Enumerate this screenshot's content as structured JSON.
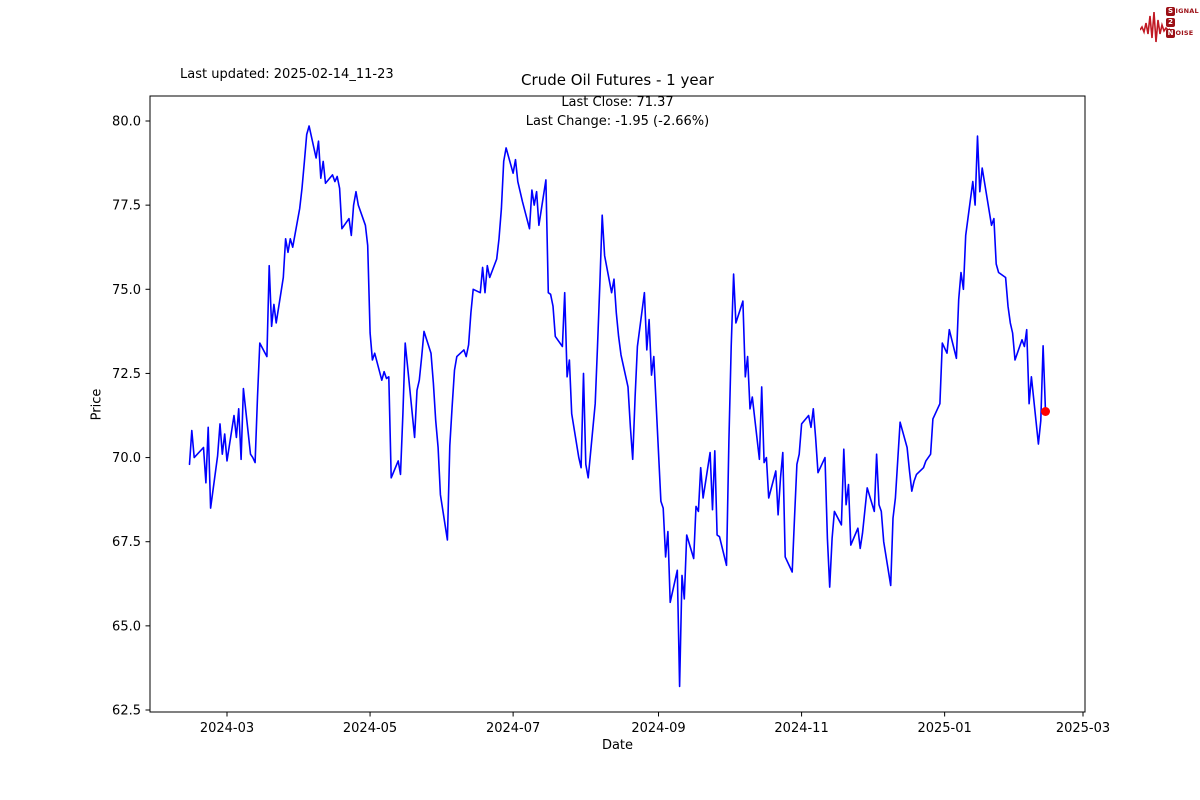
{
  "page": {
    "background": "#ffffff"
  },
  "header": {
    "last_updated": "Last updated: 2025-02-14_11-23"
  },
  "logo": {
    "signal_initial": "S",
    "signal_rest": "IGNAL",
    "middle_digit": "2",
    "noise_initial": "N",
    "noise_rest": "OISE",
    "wave_color": "#c01822",
    "box_color": "#9c1016",
    "text_color": "#9c1016"
  },
  "chart_data": {
    "type": "line",
    "title": "Crude Oil Futures - 1 year",
    "annotation_line1": "Last Close: 71.37",
    "annotation_line2": "Last Change: -1.95 (-2.66%)",
    "xlabel": "Date",
    "ylabel": "Price",
    "last_close": 71.37,
    "last_change": -1.95,
    "last_change_pct": -2.66,
    "line_color": "#0000ff",
    "marker_color": "#ff0000",
    "axis_color": "#000000",
    "grid": false,
    "legend_position": "none",
    "ylim": [
      62.4,
      80.75
    ],
    "y_ticks": [
      {
        "value": 80.0,
        "label": "80.0"
      },
      {
        "value": 77.5,
        "label": "77.5"
      },
      {
        "value": 75.0,
        "label": "75.0"
      },
      {
        "value": 72.5,
        "label": "72.5"
      },
      {
        "value": 70.0,
        "label": "70.0"
      },
      {
        "value": 67.5,
        "label": "67.5"
      },
      {
        "value": 65.0,
        "label": "65.0"
      },
      {
        "value": 62.5,
        "label": "62.5"
      }
    ],
    "x_ticks": [
      {
        "date": "2024-03-01",
        "label": "2024-03"
      },
      {
        "date": "2024-05-01",
        "label": "2024-05"
      },
      {
        "date": "2024-07-01",
        "label": "2024-07"
      },
      {
        "date": "2024-09-01",
        "label": "2024-09"
      },
      {
        "date": "2024-11-01",
        "label": "2024-11"
      },
      {
        "date": "2025-01-01",
        "label": "2025-01"
      },
      {
        "date": "2025-03-01",
        "label": "2025-03"
      }
    ],
    "series": [
      {
        "name": "Crude Oil Futures",
        "points": [
          [
            "2024-02-14",
            69.8
          ],
          [
            "2024-02-15",
            70.8
          ],
          [
            "2024-02-16",
            70.0
          ],
          [
            "2024-02-20",
            70.3
          ],
          [
            "2024-02-21",
            69.25
          ],
          [
            "2024-02-22",
            70.9
          ],
          [
            "2024-02-23",
            68.5
          ],
          [
            "2024-02-26",
            70.05
          ],
          [
            "2024-02-27",
            71.0
          ],
          [
            "2024-02-28",
            70.1
          ],
          [
            "2024-02-29",
            70.7
          ],
          [
            "2024-03-01",
            69.9
          ],
          [
            "2024-03-04",
            71.25
          ],
          [
            "2024-03-05",
            70.6
          ],
          [
            "2024-03-06",
            71.45
          ],
          [
            "2024-03-07",
            69.95
          ],
          [
            "2024-03-08",
            72.05
          ],
          [
            "2024-03-11",
            70.1
          ],
          [
            "2024-03-12",
            70.0
          ],
          [
            "2024-03-13",
            69.85
          ],
          [
            "2024-03-14",
            71.8
          ],
          [
            "2024-03-15",
            73.4
          ],
          [
            "2024-03-18",
            73.0
          ],
          [
            "2024-03-19",
            75.7
          ],
          [
            "2024-03-20",
            73.9
          ],
          [
            "2024-03-21",
            74.55
          ],
          [
            "2024-03-22",
            74.0
          ],
          [
            "2024-03-25",
            75.35
          ],
          [
            "2024-03-26",
            76.5
          ],
          [
            "2024-03-27",
            76.1
          ],
          [
            "2024-03-28",
            76.5
          ],
          [
            "2024-03-29",
            76.25
          ],
          [
            "2024-04-01",
            77.4
          ],
          [
            "2024-04-02",
            78.0
          ],
          [
            "2024-04-03",
            78.8
          ],
          [
            "2024-04-04",
            79.6
          ],
          [
            "2024-04-05",
            79.85
          ],
          [
            "2024-04-08",
            78.9
          ],
          [
            "2024-04-09",
            79.4
          ],
          [
            "2024-04-10",
            78.3
          ],
          [
            "2024-04-11",
            78.8
          ],
          [
            "2024-04-12",
            78.15
          ],
          [
            "2024-04-15",
            78.4
          ],
          [
            "2024-04-16",
            78.2
          ],
          [
            "2024-04-17",
            78.35
          ],
          [
            "2024-04-18",
            78.0
          ],
          [
            "2024-04-19",
            76.8
          ],
          [
            "2024-04-22",
            77.1
          ],
          [
            "2024-04-23",
            76.6
          ],
          [
            "2024-04-24",
            77.5
          ],
          [
            "2024-04-25",
            77.9
          ],
          [
            "2024-04-26",
            77.5
          ],
          [
            "2024-04-29",
            76.9
          ],
          [
            "2024-04-30",
            76.3
          ],
          [
            "2024-05-01",
            73.7
          ],
          [
            "2024-05-02",
            72.9
          ],
          [
            "2024-05-03",
            73.1
          ],
          [
            "2024-05-06",
            72.3
          ],
          [
            "2024-05-07",
            72.55
          ],
          [
            "2024-05-08",
            72.35
          ],
          [
            "2024-05-09",
            72.4
          ],
          [
            "2024-05-10",
            69.4
          ],
          [
            "2024-05-13",
            69.9
          ],
          [
            "2024-05-14",
            69.5
          ],
          [
            "2024-05-15",
            71.3
          ],
          [
            "2024-05-16",
            73.4
          ],
          [
            "2024-05-17",
            72.7
          ],
          [
            "2024-05-20",
            70.6
          ],
          [
            "2024-05-21",
            72.0
          ],
          [
            "2024-05-22",
            72.3
          ],
          [
            "2024-05-23",
            73.0
          ],
          [
            "2024-05-24",
            73.75
          ],
          [
            "2024-05-27",
            73.1
          ],
          [
            "2024-05-28",
            72.2
          ],
          [
            "2024-05-29",
            71.1
          ],
          [
            "2024-05-30",
            70.3
          ],
          [
            "2024-05-31",
            68.9
          ],
          [
            "2024-06-03",
            67.55
          ],
          [
            "2024-06-04",
            70.35
          ],
          [
            "2024-06-05",
            71.5
          ],
          [
            "2024-06-06",
            72.6
          ],
          [
            "2024-06-07",
            73.0
          ],
          [
            "2024-06-10",
            73.2
          ],
          [
            "2024-06-11",
            73.0
          ],
          [
            "2024-06-12",
            73.35
          ],
          [
            "2024-06-13",
            74.3
          ],
          [
            "2024-06-14",
            75.0
          ],
          [
            "2024-06-17",
            74.9
          ],
          [
            "2024-06-18",
            75.65
          ],
          [
            "2024-06-19",
            74.9
          ],
          [
            "2024-06-20",
            75.7
          ],
          [
            "2024-06-21",
            75.35
          ],
          [
            "2024-06-24",
            75.9
          ],
          [
            "2024-06-25",
            76.5
          ],
          [
            "2024-06-26",
            77.4
          ],
          [
            "2024-06-27",
            78.8
          ],
          [
            "2024-06-28",
            79.2
          ],
          [
            "2024-07-01",
            78.45
          ],
          [
            "2024-07-02",
            78.85
          ],
          [
            "2024-07-03",
            78.2
          ],
          [
            "2024-07-05",
            77.6
          ],
          [
            "2024-07-08",
            76.8
          ],
          [
            "2024-07-09",
            77.95
          ],
          [
            "2024-07-10",
            77.5
          ],
          [
            "2024-07-11",
            77.9
          ],
          [
            "2024-07-12",
            76.9
          ],
          [
            "2024-07-15",
            78.25
          ],
          [
            "2024-07-16",
            74.9
          ],
          [
            "2024-07-17",
            74.85
          ],
          [
            "2024-07-18",
            74.5
          ],
          [
            "2024-07-19",
            73.6
          ],
          [
            "2024-07-22",
            73.3
          ],
          [
            "2024-07-23",
            74.9
          ],
          [
            "2024-07-24",
            72.4
          ],
          [
            "2024-07-25",
            72.9
          ],
          [
            "2024-07-26",
            71.3
          ],
          [
            "2024-07-29",
            70.0
          ],
          [
            "2024-07-30",
            69.7
          ],
          [
            "2024-07-31",
            72.5
          ],
          [
            "2024-08-01",
            69.8
          ],
          [
            "2024-08-02",
            69.4
          ],
          [
            "2024-08-05",
            71.6
          ],
          [
            "2024-08-06",
            73.3
          ],
          [
            "2024-08-07",
            75.2
          ],
          [
            "2024-08-08",
            77.2
          ],
          [
            "2024-08-09",
            76.0
          ],
          [
            "2024-08-12",
            74.9
          ],
          [
            "2024-08-13",
            75.3
          ],
          [
            "2024-08-14",
            74.3
          ],
          [
            "2024-08-15",
            73.6
          ],
          [
            "2024-08-16",
            73.05
          ],
          [
            "2024-08-19",
            72.1
          ],
          [
            "2024-08-20",
            70.9
          ],
          [
            "2024-08-21",
            69.95
          ],
          [
            "2024-08-22",
            71.8
          ],
          [
            "2024-08-23",
            73.3
          ],
          [
            "2024-08-26",
            74.9
          ],
          [
            "2024-08-27",
            73.2
          ],
          [
            "2024-08-28",
            74.1
          ],
          [
            "2024-08-29",
            72.45
          ],
          [
            "2024-08-30",
            73.0
          ],
          [
            "2024-09-02",
            68.7
          ],
          [
            "2024-09-03",
            68.5
          ],
          [
            "2024-09-04",
            67.05
          ],
          [
            "2024-09-05",
            67.8
          ],
          [
            "2024-09-06",
            65.7
          ],
          [
            "2024-09-09",
            66.65
          ],
          [
            "2024-09-10",
            63.2
          ],
          [
            "2024-09-11",
            66.5
          ],
          [
            "2024-09-12",
            65.8
          ],
          [
            "2024-09-13",
            67.7
          ],
          [
            "2024-09-16",
            67.0
          ],
          [
            "2024-09-17",
            68.55
          ],
          [
            "2024-09-18",
            68.4
          ],
          [
            "2024-09-19",
            69.7
          ],
          [
            "2024-09-20",
            68.8
          ],
          [
            "2024-09-23",
            70.15
          ],
          [
            "2024-09-24",
            68.45
          ],
          [
            "2024-09-25",
            70.2
          ],
          [
            "2024-09-26",
            67.7
          ],
          [
            "2024-09-27",
            67.65
          ],
          [
            "2024-09-30",
            66.8
          ],
          [
            "2024-10-01",
            70.5
          ],
          [
            "2024-10-02",
            73.3
          ],
          [
            "2024-10-03",
            75.45
          ],
          [
            "2024-10-04",
            74.0
          ],
          [
            "2024-10-07",
            74.65
          ],
          [
            "2024-10-08",
            72.4
          ],
          [
            "2024-10-09",
            73.0
          ],
          [
            "2024-10-10",
            71.45
          ],
          [
            "2024-10-11",
            71.8
          ],
          [
            "2024-10-14",
            69.95
          ],
          [
            "2024-10-15",
            72.1
          ],
          [
            "2024-10-16",
            69.85
          ],
          [
            "2024-10-17",
            70.0
          ],
          [
            "2024-10-18",
            68.8
          ],
          [
            "2024-10-21",
            69.6
          ],
          [
            "2024-10-22",
            68.3
          ],
          [
            "2024-10-23",
            69.4
          ],
          [
            "2024-10-24",
            70.15
          ],
          [
            "2024-10-25",
            67.05
          ],
          [
            "2024-10-28",
            66.6
          ],
          [
            "2024-10-29",
            68.2
          ],
          [
            "2024-10-30",
            69.8
          ],
          [
            "2024-10-31",
            70.1
          ],
          [
            "2024-11-01",
            71.0
          ],
          [
            "2024-11-04",
            71.25
          ],
          [
            "2024-11-05",
            70.9
          ],
          [
            "2024-11-06",
            71.45
          ],
          [
            "2024-11-07",
            70.6
          ],
          [
            "2024-11-08",
            69.55
          ],
          [
            "2024-11-11",
            70.0
          ],
          [
            "2024-11-12",
            67.6
          ],
          [
            "2024-11-13",
            66.15
          ],
          [
            "2024-11-14",
            67.6
          ],
          [
            "2024-11-15",
            68.4
          ],
          [
            "2024-11-18",
            68.0
          ],
          [
            "2024-11-19",
            70.25
          ],
          [
            "2024-11-20",
            68.6
          ],
          [
            "2024-11-21",
            69.2
          ],
          [
            "2024-11-22",
            67.4
          ],
          [
            "2024-11-25",
            67.9
          ],
          [
            "2024-11-26",
            67.3
          ],
          [
            "2024-11-27",
            67.75
          ],
          [
            "2024-11-29",
            69.1
          ],
          [
            "2024-12-02",
            68.4
          ],
          [
            "2024-12-03",
            70.1
          ],
          [
            "2024-12-04",
            68.6
          ],
          [
            "2024-12-05",
            68.4
          ],
          [
            "2024-12-06",
            67.5
          ],
          [
            "2024-12-09",
            66.2
          ],
          [
            "2024-12-10",
            68.2
          ],
          [
            "2024-12-11",
            68.8
          ],
          [
            "2024-12-12",
            69.9
          ],
          [
            "2024-12-13",
            71.05
          ],
          [
            "2024-12-16",
            70.3
          ],
          [
            "2024-12-17",
            69.6
          ],
          [
            "2024-12-18",
            69.0
          ],
          [
            "2024-12-19",
            69.3
          ],
          [
            "2024-12-20",
            69.5
          ],
          [
            "2024-12-23",
            69.7
          ],
          [
            "2024-12-24",
            69.9
          ],
          [
            "2024-12-26",
            70.1
          ],
          [
            "2024-12-27",
            71.15
          ],
          [
            "2024-12-30",
            71.6
          ],
          [
            "2024-12-31",
            73.4
          ],
          [
            "2025-01-02",
            73.1
          ],
          [
            "2025-01-03",
            73.8
          ],
          [
            "2025-01-06",
            72.95
          ],
          [
            "2025-01-07",
            74.7
          ],
          [
            "2025-01-08",
            75.5
          ],
          [
            "2025-01-09",
            75.0
          ],
          [
            "2025-01-10",
            76.6
          ],
          [
            "2025-01-13",
            78.2
          ],
          [
            "2025-01-14",
            77.5
          ],
          [
            "2025-01-15",
            79.55
          ],
          [
            "2025-01-16",
            77.9
          ],
          [
            "2025-01-17",
            78.6
          ],
          [
            "2025-01-21",
            76.9
          ],
          [
            "2025-01-22",
            77.1
          ],
          [
            "2025-01-23",
            75.75
          ],
          [
            "2025-01-24",
            75.5
          ],
          [
            "2025-01-27",
            75.35
          ],
          [
            "2025-01-28",
            74.5
          ],
          [
            "2025-01-29",
            74.0
          ],
          [
            "2025-01-30",
            73.7
          ],
          [
            "2025-01-31",
            72.9
          ],
          [
            "2025-02-03",
            73.5
          ],
          [
            "2025-02-04",
            73.3
          ],
          [
            "2025-02-05",
            73.8
          ],
          [
            "2025-02-06",
            71.6
          ],
          [
            "2025-02-07",
            72.4
          ],
          [
            "2025-02-10",
            70.4
          ],
          [
            "2025-02-11",
            71.1
          ],
          [
            "2025-02-12",
            73.32
          ],
          [
            "2025-02-13",
            71.37
          ]
        ]
      }
    ]
  }
}
